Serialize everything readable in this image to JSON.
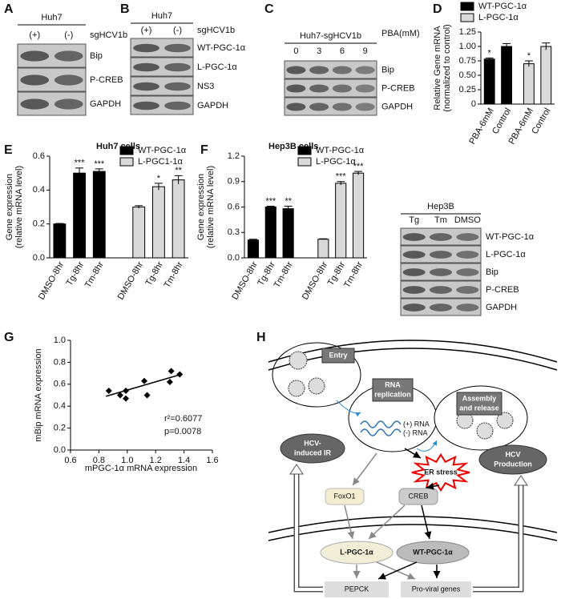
{
  "panel_letters": [
    "A",
    "B",
    "C",
    "D",
    "E",
    "F",
    "G",
    "H"
  ],
  "blots": [
    {
      "header": "Huh7",
      "lanes": [
        "(+)",
        "(-)"
      ],
      "lane_label": "sgHCV1b",
      "bands": [
        "Bip",
        "P-CREB",
        "GAPDH"
      ]
    },
    {
      "header": "Huh7",
      "lanes": [
        "(+)",
        "(-)"
      ],
      "lane_label": "sgHCV1b",
      "bands": [
        "WT-PGC-1α",
        "L-PGC-1α",
        "NS3",
        "GAPDH"
      ]
    },
    {
      "header": "Huh7-sgHCV1b",
      "lanes": [
        "0",
        "3",
        "6",
        "9"
      ],
      "lane_label": "PBA(mM)",
      "bands": [
        "Bip",
        "P-CREB",
        "GAPDH"
      ]
    },
    {
      "header": "Hep3B",
      "lanes": [
        "Tg",
        "Tm",
        "DMSO"
      ],
      "bands": [
        "WT-PGC-1α",
        "L-PGC-1α",
        "Bip",
        "P-CREB",
        "GAPDH"
      ]
    }
  ],
  "chart_data": [
    {
      "type": "bar",
      "ylabel": [
        "Relative Gene mRNA",
        "(normalized to control)"
      ],
      "categories": [
        "PBA-6mM",
        "Control",
        "PBA-6mM",
        "Control"
      ],
      "series": [
        {
          "name": "WT-PGC-1α",
          "color": "#000000",
          "values": [
            0.78,
            1.0,
            null,
            null
          ],
          "errors": [
            0.02,
            0.05,
            null,
            null
          ],
          "annotations": [
            "*",
            null,
            null,
            null
          ]
        },
        {
          "name": "L-PGC-1α",
          "color": "#d9d9d9",
          "values": [
            null,
            null,
            0.7,
            1.0
          ],
          "errors": [
            null,
            null,
            0.05,
            0.06
          ],
          "annotations": [
            null,
            null,
            "*",
            null
          ]
        }
      ],
      "ylim": [
        0,
        1.25
      ],
      "yticks": [
        0,
        0.25,
        {
          "value": 0.5,
          "label": "0.50"
        },
        0.75,
        {
          "value": 1,
          "label": "1.00"
        },
        1.25
      ]
    },
    {
      "type": "bar",
      "title": "Huh7 cells",
      "ylabel": [
        "Gene expression",
        "(relative mRNA level)"
      ],
      "categories": [
        "DMSO-8hr",
        "Tg-8hr",
        "Tm-8hr",
        "DMSO-8hr",
        "Tg-8hr",
        "Tm-8hr"
      ],
      "series": [
        {
          "name": "WT-PGC-1α",
          "color": "#000000",
          "values": [
            0.2,
            0.5,
            0.51,
            null,
            null,
            null
          ],
          "errors": [
            0.003,
            0.03,
            0.015,
            null,
            null,
            null
          ],
          "annotations": [
            null,
            "***",
            "***",
            null,
            null,
            null
          ]
        },
        {
          "name": "L-PGC1-1α",
          "color": "#d9d9d9",
          "values": [
            null,
            null,
            null,
            0.3,
            0.42,
            0.46
          ],
          "errors": [
            null,
            null,
            null,
            0.008,
            0.02,
            0.025
          ],
          "annotations": [
            null,
            null,
            null,
            null,
            "*",
            "**"
          ]
        }
      ],
      "ylim": [
        0,
        0.6
      ],
      "yticks": [
        {
          "value": 0,
          "label": "0.0"
        },
        0.2,
        0.4,
        0.6
      ]
    },
    {
      "type": "bar",
      "title": "Hep3B cells",
      "ylabel": [
        "Gene expression",
        "(relative mRNA level)"
      ],
      "categories": [
        "DMSO-8hr",
        "Tg-8hr",
        "Tm-8hr",
        "DMSO-8hr",
        "Tg-8hr",
        "Tm-8hr"
      ],
      "series": [
        {
          "name": "WT-PGC-1α",
          "color": "#000000",
          "values": [
            0.21,
            0.6,
            0.58,
            null,
            null,
            null
          ],
          "errors": [
            0.01,
            0.01,
            0.03,
            null,
            null,
            null
          ],
          "annotations": [
            null,
            "***",
            "**",
            null,
            null,
            null
          ]
        },
        {
          "name": "L-PGC-1α",
          "color": "#d9d9d9",
          "values": [
            null,
            null,
            null,
            0.22,
            0.88,
            1.0
          ],
          "errors": [
            null,
            null,
            null,
            0.005,
            0.02,
            0.02
          ],
          "annotations": [
            null,
            null,
            null,
            null,
            "***",
            "***"
          ]
        }
      ],
      "ylim": [
        0,
        1.2
      ],
      "yticks": [
        {
          "value": 0,
          "label": "0.0"
        },
        0.3,
        0.6,
        0.9,
        1.2
      ]
    },
    {
      "type": "scatter",
      "xlabel": "mPGC-1α mRNA expression",
      "ylabel": [
        "mBip mRNA expression"
      ],
      "x": [
        0.87,
        0.95,
        0.99,
        0.99,
        1.12,
        1.14,
        1.3,
        1.31,
        1.37
      ],
      "y": [
        0.54,
        0.5,
        0.47,
        0.54,
        0.63,
        0.5,
        0.62,
        0.72,
        0.69
      ],
      "fit": {
        "x": [
          0.85,
          1.38
        ],
        "y": [
          0.49,
          0.69
        ]
      },
      "annotations": [
        "r²=0.6077",
        "p=0.0078"
      ],
      "xlim": [
        0.6,
        1.6
      ],
      "xticks": [
        0.6,
        0.8,
        {
          "value": 1,
          "label": "1.0"
        },
        1.2,
        1.4,
        1.6
      ],
      "ylim": [
        0,
        1
      ],
      "yticks": [
        {
          "value": 0,
          "label": "0.0"
        },
        0.2,
        0.4,
        0.6,
        0.8,
        {
          "value": 1,
          "label": "1.0"
        }
      ]
    }
  ],
  "diagram": {
    "entry": "Entry",
    "replication": [
      "RNA",
      "replication"
    ],
    "assembly": [
      "Assembly",
      "and release"
    ],
    "plus_rna": "(+) RNA",
    "minus_rna": "(-) RNA",
    "er_stress": "ER stress",
    "ir": [
      "HCV-",
      "induced IR"
    ],
    "production": [
      "HCV",
      "Production"
    ],
    "foxo1": "FoxO1",
    "creb": "CREB",
    "l_pgc": "L-PGC-1α",
    "wt_pgc": "WT-PGC-1α",
    "pepck": "PEPCK",
    "proviral": "Pro-viral genes"
  }
}
